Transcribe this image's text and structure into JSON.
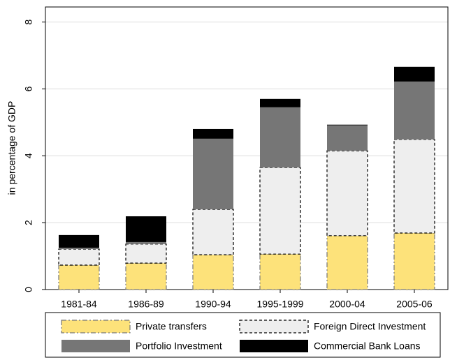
{
  "chart_data": {
    "type": "stacked_bar",
    "y_label": "in percentage of GDP",
    "categories": [
      "1981-84",
      "1986-89",
      "1990-94",
      "1995-1999",
      "2000-04",
      "2005-06"
    ],
    "series": [
      {
        "name": "Private transfers",
        "color": "#fde27a",
        "edgecolor": "#777777",
        "linestyle": "dashdot",
        "values": [
          0.73,
          0.79,
          1.04,
          1.06,
          1.61,
          1.69
        ]
      },
      {
        "name": "Foreign Direct Investment",
        "color": "#eeeeee",
        "edgecolor": "#000000",
        "linestyle": "dashed",
        "values": [
          0.48,
          0.57,
          1.36,
          2.59,
          2.54,
          2.8
        ]
      },
      {
        "name": "Portfolio Investment",
        "color": "#767676",
        "edgecolor": null,
        "linestyle": "none",
        "values": [
          0.04,
          0.06,
          2.11,
          1.8,
          0.76,
          1.73
        ]
      },
      {
        "name": "Commercial Bank Loans",
        "color": "#000000",
        "edgecolor": null,
        "linestyle": "none",
        "values": [
          0.38,
          0.77,
          0.29,
          0.25,
          0.02,
          0.44
        ]
      }
    ],
    "ylim": [
      0,
      8.45
    ],
    "yticks": [
      0,
      2,
      4,
      6,
      8
    ],
    "grid": true,
    "legend": "bottom"
  }
}
